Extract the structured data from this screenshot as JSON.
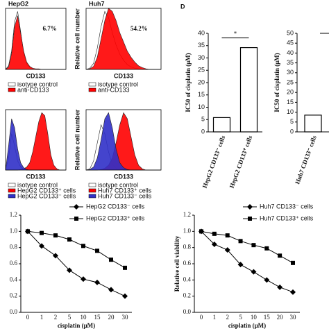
{
  "chart_data": [
    {
      "type": "histogram-area",
      "title": "HepG2",
      "annotation": "6.7%",
      "x_label": "CD133",
      "x": [
        0,
        1,
        2,
        3,
        4,
        5,
        6,
        7,
        8,
        9,
        10,
        11,
        12,
        13,
        14,
        15,
        16,
        17,
        18,
        19,
        20
      ],
      "xlim": [
        0,
        20
      ],
      "ylim": [
        0,
        100
      ],
      "series": [
        {
          "name": "isotype control",
          "color": "#ffffff",
          "values": [
            0,
            6,
            30,
            78,
            95,
            62,
            26,
            9,
            3,
            1,
            0,
            0,
            0,
            0,
            0,
            0,
            0,
            0,
            0,
            0,
            0
          ]
        },
        {
          "name": "anti-CD133",
          "color": "#ff0000",
          "values": [
            0,
            4,
            26,
            70,
            88,
            60,
            30,
            12,
            5,
            2,
            1,
            1,
            0,
            0,
            0,
            0,
            0,
            0,
            0,
            0,
            0
          ]
        }
      ]
    },
    {
      "type": "histogram-area",
      "title": "Huh7",
      "annotation": "54.2%",
      "x_label": "CD133",
      "y_label": "Relative cell number",
      "x": [
        0,
        1,
        2,
        3,
        4,
        5,
        6,
        7,
        8,
        9,
        10,
        11,
        12,
        13,
        14,
        15,
        16,
        17,
        18,
        19,
        20
      ],
      "xlim": [
        0,
        20
      ],
      "ylim": [
        0,
        100
      ],
      "series": [
        {
          "name": "isotype control",
          "color": "#ffffff",
          "values": [
            0,
            2,
            10,
            35,
            70,
            95,
            85,
            60,
            40,
            25,
            15,
            8,
            4,
            2,
            1,
            0,
            0,
            0,
            0,
            0,
            0
          ]
        },
        {
          "name": "anti-CD133",
          "color": "#ff0000",
          "values": [
            0,
            1,
            5,
            20,
            50,
            80,
            100,
            95,
            80,
            60,
            45,
            30,
            20,
            12,
            6,
            3,
            1,
            0,
            0,
            0,
            0
          ]
        }
      ]
    },
    {
      "type": "histogram-area",
      "x_label": "CD133",
      "x": [
        0,
        1,
        2,
        3,
        4,
        5,
        6,
        7,
        8,
        9,
        10,
        11,
        12,
        13,
        14,
        15,
        16,
        17,
        18,
        19,
        20
      ],
      "xlim": [
        0,
        20
      ],
      "ylim": [
        0,
        100
      ],
      "series": [
        {
          "name": "isotype control",
          "color": "#ffffff",
          "values": [
            0,
            20,
            60,
            40,
            15,
            5,
            1,
            0,
            0,
            0,
            0,
            0,
            0,
            0,
            0,
            0,
            0,
            0,
            0,
            0,
            0
          ]
        },
        {
          "name": "HepG2 CD133⁺ cells",
          "color": "#ff0000",
          "values": [
            0,
            0,
            0,
            0,
            0,
            1,
            2,
            5,
            12,
            30,
            55,
            80,
            95,
            90,
            60,
            25,
            8,
            2,
            0,
            0,
            0
          ]
        },
        {
          "name": "HepG2 CD133⁻ cells",
          "color": "#3030c8",
          "values": [
            0,
            40,
            85,
            70,
            35,
            12,
            4,
            1,
            0,
            0,
            0,
            0,
            0,
            0,
            0,
            0,
            0,
            0,
            0,
            0,
            0
          ]
        }
      ]
    },
    {
      "type": "histogram-area",
      "x_label": "CD133",
      "y_label": "Relative cell number",
      "x": [
        0,
        1,
        2,
        3,
        4,
        5,
        6,
        7,
        8,
        9,
        10,
        11,
        12,
        13,
        14,
        15,
        16,
        17,
        18,
        19,
        20
      ],
      "xlim": [
        0,
        20
      ],
      "ylim": [
        0,
        100
      ],
      "series": [
        {
          "name": "isotype control",
          "color": "#ffffff",
          "values": [
            0,
            2,
            15,
            45,
            75,
            60,
            30,
            10,
            3,
            1,
            0,
            0,
            0,
            0,
            0,
            0,
            0,
            0,
            0,
            0,
            0
          ]
        },
        {
          "name": "Huh7 CD133⁺ cells",
          "color": "#ff0000",
          "values": [
            0,
            0,
            0,
            0,
            1,
            3,
            8,
            20,
            45,
            75,
            95,
            85,
            55,
            25,
            8,
            2,
            0,
            0,
            0,
            0,
            0
          ]
        },
        {
          "name": "Huh7 CD133⁻ cells",
          "color": "#3030c8",
          "values": [
            0,
            1,
            5,
            20,
            50,
            85,
            95,
            70,
            35,
            12,
            4,
            1,
            0,
            0,
            0,
            0,
            0,
            0,
            0,
            0,
            0
          ]
        }
      ]
    },
    {
      "type": "bar",
      "panel_label": "D",
      "y_label": "IC50 of cisplatin (μM)",
      "annotation": "*",
      "categories": [
        "HepG2 CD133⁻ cells",
        "HepG2 CD133⁺ cells"
      ],
      "values": [
        5.8,
        34.2
      ],
      "color": "#ffffff",
      "ylim": [
        0,
        40
      ],
      "yticks": [
        0,
        5,
        10,
        15,
        20,
        25,
        30,
        35,
        40
      ]
    },
    {
      "type": "bar",
      "y_label": "IC50 of cisplatin (μM)",
      "categories": [
        "Huh7 CD133⁻ cells"
      ],
      "values": [
        8.5
      ],
      "color": "#ffffff",
      "ylim": [
        0,
        50
      ],
      "yticks": [
        0,
        5,
        10,
        15,
        20,
        25,
        30,
        35,
        40,
        45,
        50
      ]
    },
    {
      "type": "line",
      "x_label": "cisplatin (μM)",
      "categories": [
        "0",
        "1",
        "2",
        "5",
        "10",
        "15",
        "20",
        "30"
      ],
      "ylim": [
        0,
        1.2
      ],
      "yticks": [
        {
          "value": 0,
          "label": "0.0"
        },
        0.2,
        0.4,
        0.6,
        0.8,
        {
          "value": 1,
          "label": "1.0"
        },
        1.2
      ],
      "series": [
        {
          "name": "HepG2 CD133⁻ cells",
          "color": "#000000",
          "marker": "diamond",
          "values": [
            1.0,
            0.82,
            0.7,
            0.52,
            0.41,
            0.37,
            0.28,
            0.2
          ]
        },
        {
          "name": "HepG2 CD133⁺ cells",
          "color": "#000000",
          "marker": "square",
          "values": [
            1.0,
            0.98,
            0.95,
            0.9,
            0.82,
            0.76,
            0.65,
            0.55
          ]
        }
      ]
    },
    {
      "type": "line",
      "x_label": "cisplatin (μM)",
      "y_label": "Relative cell viability",
      "categories": [
        "0",
        "1",
        "2",
        "5",
        "10",
        "15",
        "20",
        "30"
      ],
      "ylim": [
        0,
        1.2
      ],
      "yticks": [
        {
          "value": 0,
          "label": "0.0"
        },
        0.2,
        0.4,
        0.6,
        0.8,
        {
          "value": 1,
          "label": "1.0"
        },
        1.2
      ],
      "series": [
        {
          "name": "Huh7 CD133⁻ cells",
          "color": "#000000",
          "marker": "diamond",
          "values": [
            1.0,
            0.84,
            0.77,
            0.59,
            0.5,
            0.4,
            0.31,
            0.25
          ]
        },
        {
          "name": "Huh7 CD133⁺ cells",
          "color": "#000000",
          "marker": "square",
          "values": [
            1.0,
            0.97,
            0.95,
            0.88,
            0.83,
            0.79,
            0.7,
            0.61
          ]
        }
      ]
    }
  ]
}
